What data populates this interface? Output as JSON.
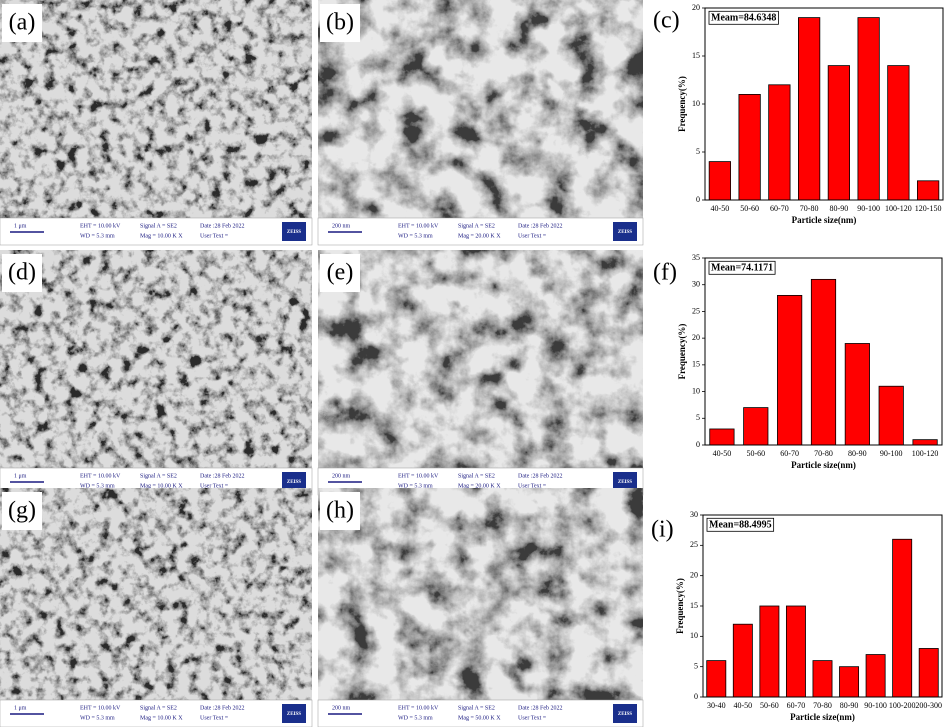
{
  "panels": [
    {
      "label": "(a)",
      "scale": "1 μm",
      "eht": "EHT = 10.00 kV",
      "wd": "WD = 5.3 mm",
      "signal": "Signal A = SE2",
      "mag": "Mag = 10.00 K X",
      "date": "Date :28 Feb 2022",
      "user_text": "User Text =",
      "logo": "ZEISS"
    },
    {
      "label": "(b)",
      "scale": "200 nm",
      "eht": "EHT = 10.00 kV",
      "wd": "WD = 5.3 mm",
      "signal": "Signal A = SE2",
      "mag": "Mag = 20.00 K X",
      "date": "Date :28 Feb 2022",
      "user_text": "User Text =",
      "logo": "ZEISS"
    },
    {
      "label": "(d)",
      "scale": "1 μm",
      "eht": "EHT = 10.00 kV",
      "wd": "WD = 5.3 mm",
      "signal": "Signal A = SE2",
      "mag": "Mag = 10.00 K X",
      "date": "Date :28 Feb 2022",
      "user_text": "User Text =",
      "logo": "ZEISS"
    },
    {
      "label": "(e)",
      "scale": "200 nm",
      "eht": "EHT = 10.00 kV",
      "wd": "WD = 5.3 mm",
      "signal": "Signal A = SE2",
      "mag": "Mag = 20.00 K X",
      "date": "Date :28 Feb 2022",
      "user_text": "User Text =",
      "logo": "ZEISS"
    },
    {
      "label": "(g)",
      "scale": "1 μm",
      "eht": "EHT = 10.00 kV",
      "wd": "WD = 5.3 mm",
      "signal": "Signal A = SE2",
      "mag": "Mag = 10.00 K X",
      "date": "Date :28 Feb 2022",
      "user_text": "User Text =",
      "logo": "ZEISS"
    },
    {
      "label": "(h)",
      "scale": "200 nm",
      "eht": "EHT = 10.00 kV",
      "wd": "WD = 5.3 mm",
      "signal": "Signal A = SE2",
      "mag": "Mag = 50.00 K X",
      "date": "Date :28 Feb 2022",
      "user_text": "User Text =",
      "logo": "ZEISS"
    }
  ],
  "chart_data": [
    {
      "type": "bar",
      "panel_label": "(c)",
      "annotation": "Meam=84.6348",
      "x_label": "Particle size(nm)",
      "y_label": "Frequency(%)",
      "color": "#ff0000",
      "categories": [
        "40-50",
        "50-60",
        "60-70",
        "70-80",
        "80-90",
        "90-100",
        "100-120",
        "120-150"
      ],
      "values": [
        4,
        11,
        12,
        19,
        14,
        19,
        14,
        2
      ],
      "ylim": [
        0,
        20
      ],
      "yticks": [
        0,
        5,
        10,
        15,
        20
      ]
    },
    {
      "type": "bar",
      "panel_label": "(f)",
      "annotation": "Mean=74.1171",
      "x_label": "Particle size(nm)",
      "y_label": "Frequency(%)",
      "color": "#ff0000",
      "categories": [
        "40-50",
        "50-60",
        "60-70",
        "70-80",
        "80-90",
        "90-100",
        "100-120"
      ],
      "values": [
        3,
        7,
        28,
        31,
        19,
        11,
        1
      ],
      "ylim": [
        0,
        35
      ],
      "yticks": [
        0,
        5,
        10,
        15,
        20,
        25,
        30,
        35
      ]
    },
    {
      "type": "bar",
      "panel_label": "(i)",
      "annotation": "Mean=88.4995",
      "x_label": "Particle size(nm)",
      "y_label": "Frequency(%)",
      "color": "#ff0000",
      "categories": [
        "30-40",
        "40-50",
        "50-60",
        "60-70",
        "70-80",
        "80-90",
        "90-100",
        "100-200",
        "200-300"
      ],
      "values": [
        6,
        12,
        15,
        15,
        6,
        5,
        7,
        26,
        8
      ],
      "ylim": [
        0,
        30
      ],
      "yticks": [
        0,
        5,
        10,
        15,
        20,
        25,
        30
      ]
    }
  ]
}
